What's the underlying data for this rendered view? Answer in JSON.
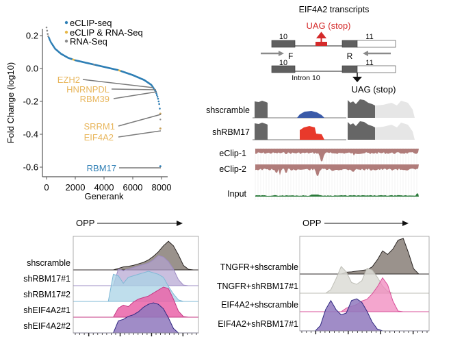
{
  "chart_data": [
    {
      "type": "scatter",
      "panel": "gene-rank",
      "xlabel": "Generank",
      "ylabel": "Fold Change (log10)",
      "xlim": [
        0,
        8400
      ],
      "ylim": [
        -0.63,
        0.27
      ],
      "xticks": [
        0,
        2000,
        4000,
        6000,
        8000
      ],
      "xtick_labels": [
        "0",
        "2000",
        "4000",
        "6000",
        "8000"
      ],
      "yticks": [
        0.2,
        0.0,
        -0.2,
        -0.4,
        -0.6
      ],
      "ytick_labels": [
        "0.2",
        "0.0",
        "-0.2",
        "-0.4",
        "-0.6"
      ],
      "legend": [
        {
          "label": "eCLIP-seq",
          "color": "#2f7fb5"
        },
        {
          "label": "eCLIP & RNA-Seq",
          "color": "#e6b84a"
        },
        {
          "label": "RNA-Seq",
          "color": "#8c8c8c"
        }
      ],
      "legend_position": "top-right",
      "curve": [
        [
          0,
          0.25
        ],
        [
          100,
          0.2
        ],
        [
          300,
          0.16
        ],
        [
          600,
          0.12
        ],
        [
          1000,
          0.09
        ],
        [
          1500,
          0.065
        ],
        [
          2000,
          0.05
        ],
        [
          3000,
          0.03
        ],
        [
          4000,
          0.01
        ],
        [
          5000,
          -0.01
        ],
        [
          6000,
          -0.04
        ],
        [
          6800,
          -0.07
        ],
        [
          7300,
          -0.1
        ],
        [
          7600,
          -0.14
        ],
        [
          7750,
          -0.18
        ],
        [
          7850,
          -0.22
        ],
        [
          7900,
          -0.26
        ]
      ],
      "annotations": [
        {
          "label": "EZH2",
          "color": "#e8b65c",
          "x": 7300,
          "y": -0.1
        },
        {
          "label": "HNRNPDL",
          "color": "#e8b65c",
          "x": 7550,
          "y": -0.12
        },
        {
          "label": "RBM39",
          "color": "#e8b65c",
          "x": 7650,
          "y": -0.135
        },
        {
          "label": "SRRM1",
          "color": "#e8b65c",
          "x": 7920,
          "y": -0.275
        },
        {
          "label": "EIF4A2",
          "color": "#e8b65c",
          "x": 7920,
          "y": -0.365
        },
        {
          "label": "RBM17",
          "color": "#2f7fb5",
          "x": 7920,
          "y": -0.595
        }
      ],
      "extra_points": [
        [
          7920,
          -0.31
        ]
      ]
    },
    {
      "type": "area",
      "panel": "flow-histogram-left",
      "title": "OPP",
      "series": [
        {
          "name": "shscramble",
          "fill": "#8f867f",
          "stroke": "#2b2624",
          "opacity": 0.9,
          "values": [
            0,
            0,
            0,
            0,
            0,
            0,
            0,
            0,
            0,
            0.05,
            0.1,
            0.12,
            0.15,
            0.2,
            0.25,
            0.33,
            0.45,
            0.6,
            0.8,
            0.95,
            0.8,
            0.5,
            0.15,
            0.02,
            0,
            0
          ]
        },
        {
          "name": "shRBM17#1",
          "fill": "#b4a4d2",
          "stroke": "#9e8cc4",
          "opacity": 0.7,
          "values": [
            0,
            0,
            0,
            0,
            0,
            0,
            0,
            0,
            0,
            0.55,
            0.5,
            0.55,
            0.6,
            0.65,
            0.7,
            0.75,
            0.85,
            1.0,
            0.95,
            0.8,
            0.55,
            0.2,
            0.02,
            0,
            0,
            0
          ]
        },
        {
          "name": "shRBM17#2",
          "fill": "#a9d3e6",
          "stroke": "#7fb8d6",
          "opacity": 0.75,
          "values": [
            0,
            0,
            0,
            0,
            0,
            0,
            0,
            0,
            0.9,
            0.85,
            0.6,
            0.8,
            0.85,
            0.9,
            0.95,
            1.0,
            0.95,
            0.9,
            0.8,
            0.5,
            0.25,
            0.05,
            0,
            0,
            0,
            0
          ]
        },
        {
          "name": "shEIF4A2#1",
          "fill": "#ea63a8",
          "stroke": "#c43883",
          "opacity": 0.85,
          "values": [
            0,
            0,
            0,
            0,
            0,
            0,
            0,
            0,
            0,
            0.3,
            0.4,
            0.35,
            0.5,
            0.6,
            0.65,
            0.7,
            0.8,
            0.9,
            1.0,
            0.95,
            0.6,
            0.2,
            0.02,
            0,
            0,
            0
          ]
        },
        {
          "name": "shEIF4A2#2",
          "fill": "#8f78bd",
          "stroke": "#2e2780",
          "opacity": 0.85,
          "values": [
            0,
            0,
            0,
            0,
            0,
            0,
            0,
            0,
            0,
            0.4,
            0.45,
            0.55,
            0.6,
            0.7,
            0.85,
            0.95,
            1.0,
            0.95,
            0.8,
            0.5,
            0.15,
            0,
            0,
            0,
            0,
            0
          ]
        }
      ]
    },
    {
      "type": "area",
      "panel": "flow-histogram-right",
      "title": "OPP",
      "series": [
        {
          "name": "TNGFR+shscramble",
          "fill": "#8f867f",
          "stroke": "#2b2624",
          "opacity": 0.9,
          "values": [
            0,
            0,
            0,
            0,
            0,
            0,
            0,
            0,
            0,
            0.05,
            0.06,
            0.08,
            0.1,
            0.12,
            0.2,
            0.4,
            0.65,
            0.55,
            0.7,
            0.95,
            1.0,
            0.6,
            0.15,
            0,
            0,
            0
          ]
        },
        {
          "name": "TNGFR+shRBM17#1",
          "fill": "#dcdcd6",
          "stroke": "#bdbdb5",
          "opacity": 0.85,
          "values": [
            0,
            0,
            0,
            0,
            0,
            0,
            0.1,
            0.4,
            0.75,
            0.6,
            0.3,
            0.25,
            0.35,
            0.7,
            0.65,
            0.45,
            0.2,
            0.05,
            0,
            0,
            0,
            0,
            0,
            0,
            0,
            0
          ]
        },
        {
          "name": "EIF4A2+shscramble",
          "fill": "#f088bd",
          "stroke": "#d9519a",
          "opacity": 0.75,
          "values": [
            0,
            0,
            0,
            0,
            0,
            0,
            0,
            0,
            0,
            0.1,
            0.15,
            0.2,
            0.3,
            0.35,
            0.5,
            0.7,
            0.95,
            0.75,
            0.3,
            0.02,
            0,
            0,
            0,
            0,
            0,
            0
          ]
        },
        {
          "name": "EIF4A2+shRBM17#1",
          "fill": "#8f78bd",
          "stroke": "#2e2780",
          "opacity": 0.85,
          "values": [
            0,
            0,
            0,
            0,
            0.15,
            0.6,
            0.85,
            0.6,
            0.45,
            0.5,
            0.85,
            0.9,
            0.8,
            0.55,
            0.25,
            0.05,
            0,
            0,
            0,
            0,
            0,
            0,
            0,
            0,
            0,
            0
          ]
        }
      ]
    }
  ],
  "scatter": {
    "legend": [
      "eCLIP-seq",
      "eCLIP & RNA-Seq",
      "RNA-Seq"
    ],
    "xlabel": "Generank",
    "ylabel": "Fold Change (log10)",
    "labels": {
      "ezh2": "EZH2",
      "hnrnpdl": "HNRNPDL",
      "rbm39": "RBM39",
      "srrm1": "SRRM1",
      "eif4a2": "EIF4A2",
      "rbm17": "RBM17"
    }
  },
  "diagram": {
    "title": "EIF4A2 transcripts",
    "stop_top": "UAG (stop)",
    "stop_bottom": "UAG (stop)",
    "exon10": "10",
    "exon11": "11",
    "exon10b": "10",
    "exon11b": "11",
    "primer_f": "F",
    "primer_r": "R",
    "intron": "Intron 10",
    "colors": {
      "exon": "#5f5f5f",
      "stop": "#d42a2a",
      "primer": "#8a8a8a"
    }
  },
  "tracks": {
    "shscramble": "shscramble",
    "shrbm17": "shRBM17",
    "eclip1": "eClip-1",
    "eclip2": "eClip-2",
    "input": "Input",
    "colors": {
      "coverage": "#666666",
      "coverage_light": "#e6e6e6",
      "scramble_highlight": "#3a5aa8",
      "rbm17_highlight": "#e8392b",
      "eclip": "#b07c7a",
      "input": "#2a7a3a"
    }
  },
  "histograms": {
    "left": {
      "axis_label": "OPP",
      "rows": [
        "shscramble",
        "shRBM17#1",
        "shRBM17#2",
        "shEIF4A2#1",
        "shEIF4A2#2"
      ]
    },
    "right": {
      "axis_label": "OPP",
      "rows": [
        "TNGFR+shscramble",
        "TNGFR+shRBM17#1",
        "EIF4A2+shscramble",
        "EIF4A2+shRBM17#1"
      ]
    }
  }
}
